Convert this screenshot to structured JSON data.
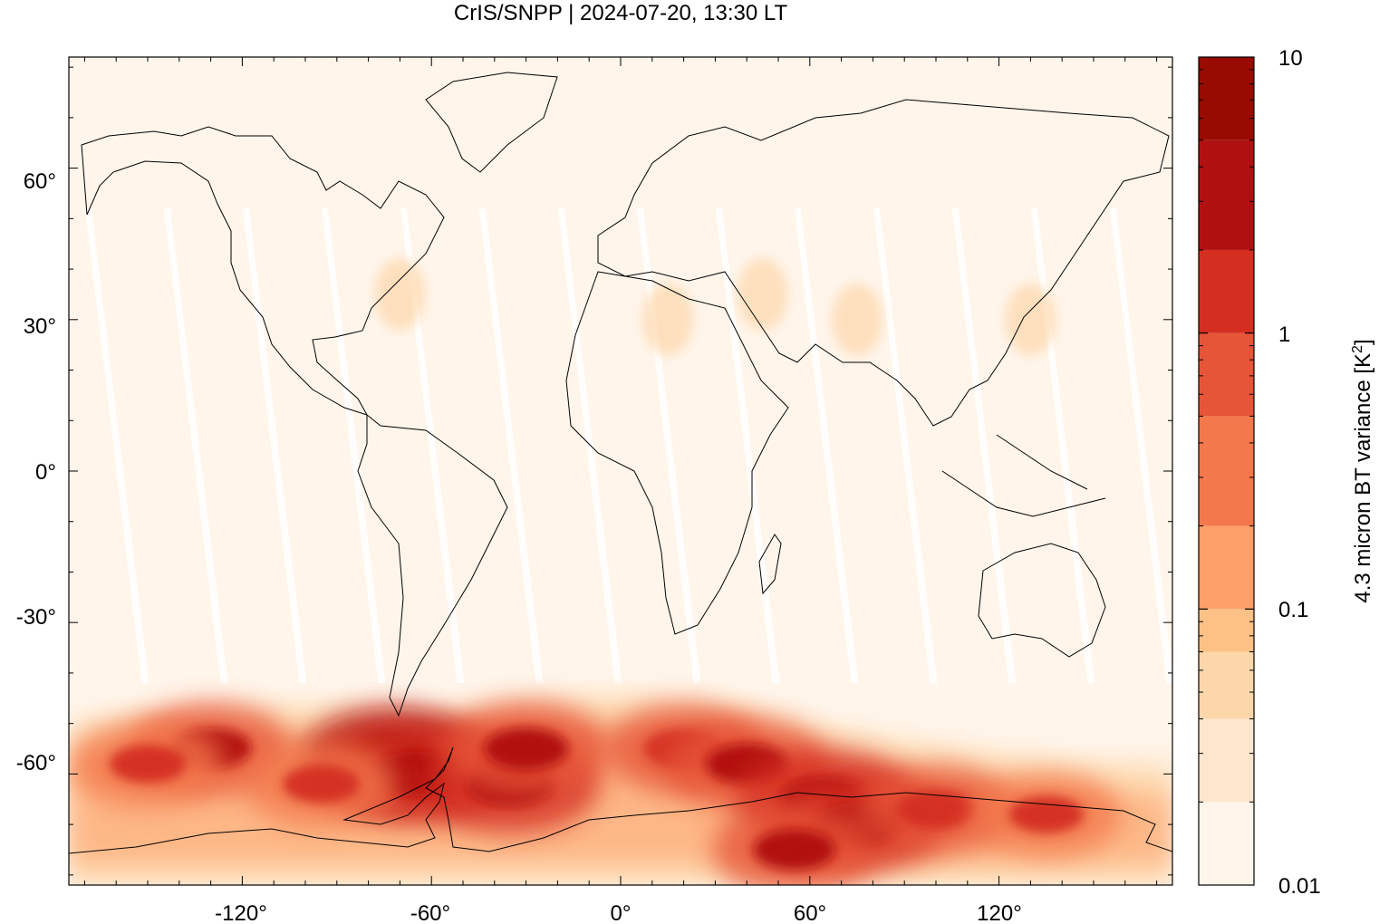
{
  "chart_data": {
    "type": "heatmap",
    "title": "CrIS/SNPP | 2024-07-20, 13:30 LT",
    "projection": "equirectangular world map",
    "xlim": [
      -175,
      175
    ],
    "ylim": [
      -82,
      82
    ],
    "x_ticks": [
      -120,
      -60,
      0,
      60,
      120
    ],
    "x_tick_labels": [
      "-120°",
      "-60°",
      "0°",
      "60°",
      "120°"
    ],
    "y_ticks": [
      60,
      30,
      0,
      -30,
      -60
    ],
    "y_tick_labels": [
      "60°",
      "30°",
      "0°",
      "-30°",
      "-60°"
    ],
    "colorbar": {
      "label": "4.3 micron BT variance [K",
      "label_sup": "2",
      "label_end": "]",
      "scale": "log",
      "range": [
        0.01,
        10
      ],
      "tick_values": [
        10,
        1,
        0.1,
        0.01
      ],
      "tick_labels": [
        "10",
        "1",
        "0.1",
        "0.01"
      ],
      "levels": [
        0.01,
        0.02,
        0.04,
        0.07,
        0.1,
        0.2,
        0.5,
        1,
        2,
        5,
        10
      ],
      "colors": [
        "#fff5eb",
        "#fee6ce",
        "#fdd7aa",
        "#fdc085",
        "#fda06a",
        "#f3784c",
        "#e65538",
        "#d42e20",
        "#b01010",
        "#970b00"
      ]
    },
    "background_color": "#fff5eb",
    "orbit_gap_longitudes_at_equator": [
      -160,
      -135,
      -110,
      -85,
      -60,
      -35,
      -10,
      15,
      40,
      65,
      90,
      115,
      140,
      165
    ],
    "hotspots": [
      {
        "lon": -72,
        "lat": -57,
        "value": 6.0
      },
      {
        "lon": -65,
        "lat": -60,
        "value": 4.5
      },
      {
        "lon": -35,
        "lat": -62,
        "value": 4.0
      },
      {
        "lon": -30,
        "lat": -55,
        "value": 2.5
      },
      {
        "lon": -130,
        "lat": -55,
        "value": 2.0
      },
      {
        "lon": -95,
        "lat": -62,
        "value": 1.2
      },
      {
        "lon": 20,
        "lat": -55,
        "value": 1.5
      },
      {
        "lon": 40,
        "lat": -58,
        "value": 2.0
      },
      {
        "lon": 65,
        "lat": -65,
        "value": 4.5
      },
      {
        "lon": 75,
        "lat": -70,
        "value": 3.0
      },
      {
        "lon": 100,
        "lat": -67,
        "value": 1.5
      },
      {
        "lon": 135,
        "lat": -68,
        "value": 1.0
      },
      {
        "lon": -150,
        "lat": -58,
        "value": 1.2
      },
      {
        "lon": 55,
        "lat": -75,
        "value": 2.0
      }
    ],
    "weak_features": [
      {
        "lon": 15,
        "lat": 30,
        "value": 0.05
      },
      {
        "lon": 45,
        "lat": 35,
        "value": 0.05
      },
      {
        "lon": 130,
        "lat": 30,
        "value": 0.05
      },
      {
        "lon": -70,
        "lat": 35,
        "value": 0.04
      },
      {
        "lon": 75,
        "lat": 30,
        "value": 0.04
      }
    ]
  }
}
